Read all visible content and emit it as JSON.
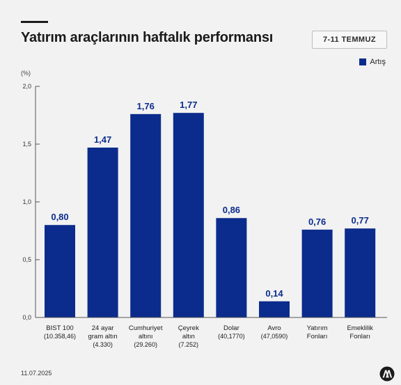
{
  "header": {
    "title": "Yatırım araçlarının haftalık performansı",
    "date_range": "7-11 TEMMUZ"
  },
  "legend": {
    "label": "Artış"
  },
  "unit": "(%)",
  "footer": {
    "date": "11.07.2025"
  },
  "colors": {
    "bar": "#0b2c8c",
    "value_text": "#0b2c8c",
    "axis": "#555555"
  },
  "chart_data": {
    "type": "bar",
    "ylabel": "(%)",
    "ylim": [
      0,
      2.0
    ],
    "yticks": [
      "0,0",
      "0,5",
      "1,0",
      "1,5",
      "2,0"
    ],
    "grid": false,
    "legend_position": "top-right",
    "series": [
      {
        "name": "Artış",
        "values": [
          0.8,
          1.47,
          1.76,
          1.77,
          0.86,
          0.14,
          0.76,
          0.77
        ]
      }
    ],
    "value_labels": [
      "0,80",
      "1,47",
      "1,76",
      "1,77",
      "0,86",
      "0,14",
      "0,76",
      "0,77"
    ],
    "categories": [
      {
        "lines": [
          "BIST 100"
        ],
        "sub": "(10.358,46)"
      },
      {
        "lines": [
          "24 ayar",
          "gram altın"
        ],
        "sub": "(4.330)"
      },
      {
        "lines": [
          "Cumhuriyet",
          "altını"
        ],
        "sub": "(29.260)"
      },
      {
        "lines": [
          "Çeyrek",
          "altın"
        ],
        "sub": "(7.252)"
      },
      {
        "lines": [
          "Dolar"
        ],
        "sub": "(40,1770)"
      },
      {
        "lines": [
          "Avro"
        ],
        "sub": "(47,0590)"
      },
      {
        "lines": [
          "Yatırım",
          "Fonları"
        ],
        "sub": ""
      },
      {
        "lines": [
          "Emeklilik",
          "Fonları"
        ],
        "sub": ""
      }
    ]
  }
}
